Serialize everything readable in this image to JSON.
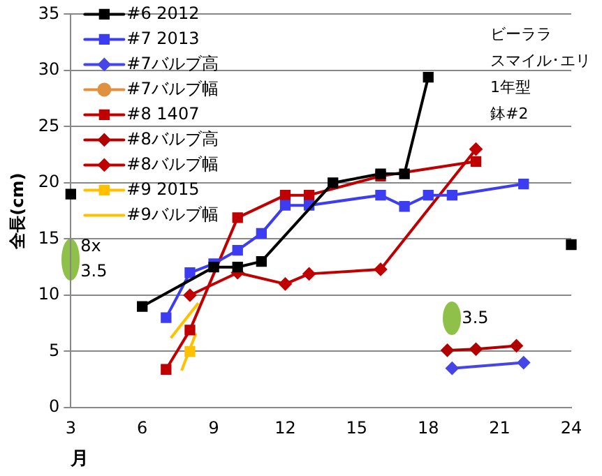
{
  "chart_data": {
    "type": "line",
    "xlabel": "月",
    "ylabel": "全長(cm)",
    "xlim": [
      3,
      24
    ],
    "xticks": [
      3,
      6,
      9,
      12,
      15,
      18,
      21,
      24
    ],
    "ylim": [
      0,
      35
    ],
    "yticks": [
      0,
      5,
      10,
      15,
      20,
      25,
      30,
      35
    ],
    "grid": "y",
    "legend": "top left",
    "annotations": [
      "ビーララ",
      "スマイル･エリ",
      "1年型",
      "鉢#2",
      {
        "text": "8x\n3.5",
        "x": 3,
        "y": 13.2
      },
      {
        "text": "3.5",
        "x": 19,
        "y": 7.9
      }
    ],
    "series": [
      {
        "name": "#6 2012",
        "type": "line",
        "marker": "square",
        "color": "#000000",
        "x": [
          6,
          9,
          10,
          11,
          14,
          16,
          17,
          18
        ],
        "values": [
          9,
          12.5,
          12.5,
          13,
          20,
          20.8,
          20.8,
          29.4
        ]
      },
      {
        "name": "#7 2013",
        "type": "line",
        "marker": "square",
        "color": "#3c3cf0",
        "x": [
          7,
          8,
          9,
          10,
          11,
          12,
          13,
          16,
          17,
          18,
          19,
          22
        ],
        "values": [
          8,
          12,
          12.8,
          14,
          15.5,
          18,
          18,
          18.9,
          17.9,
          18.9,
          18.9,
          19.9
        ]
      },
      {
        "name": "#7バルブ高",
        "type": "line",
        "marker": "diamond",
        "color": "#4646e6",
        "x": [
          19,
          22
        ],
        "values": [
          3.5,
          4
        ]
      },
      {
        "name": "#7バルブ幅",
        "type": "line",
        "marker": "circle",
        "color": "#e0913f"
      },
      {
        "name": "#8 1407",
        "type": "line",
        "marker": "square",
        "color": "#c00000",
        "x": [
          7,
          8,
          10,
          12,
          13,
          16,
          20
        ],
        "values": [
          3.4,
          6.9,
          16.9,
          18.9,
          18.9,
          20.6,
          21.9
        ]
      },
      {
        "name": "#8バルブ高",
        "type": "line",
        "marker": "diamond",
        "color": "#b00000",
        "x": [
          18.8,
          20,
          21.7
        ],
        "values": [
          5.1,
          5.2,
          5.5
        ]
      },
      {
        "name": "#8バルブ幅",
        "type": "line",
        "marker": "diamond",
        "color": "#c00000",
        "x": [
          8,
          10,
          12,
          13,
          16,
          20
        ],
        "values": [
          10,
          12,
          11,
          11.9,
          12.3,
          23
        ]
      },
      {
        "name": "#9 2015",
        "type": "line",
        "marker": "square",
        "color": "#ffc000",
        "x": [
          8
        ],
        "values": [
          5
        ]
      },
      {
        "name": "#9バルブ幅",
        "type": "line",
        "marker": "none",
        "color": "#ffc000",
        "x": [
          7.2,
          8.35,
          8,
          7.65,
          8.25
        ],
        "values": [
          6.2,
          9.3,
          null,
          3.3,
          6.6
        ]
      },
      {
        "type": "scatter",
        "marker": "square",
        "color": "#000000",
        "x": [
          3,
          24
        ],
        "values": [
          19,
          14.5
        ]
      }
    ]
  }
}
